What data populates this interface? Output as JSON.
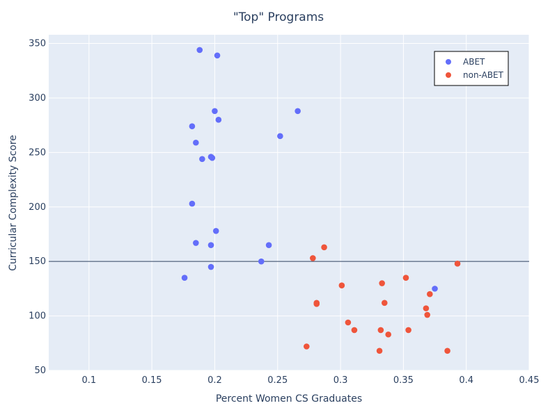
{
  "chart_data": {
    "type": "scatter",
    "title": "\"Top\" Programs",
    "xlabel": "Percent Women CS Graduates",
    "ylabel": "Curricular Complexity Score",
    "xlim": [
      0.068,
      0.45
    ],
    "ylim": [
      50,
      358
    ],
    "xticks": [
      0.1,
      0.15,
      0.2,
      0.25,
      0.3,
      0.35,
      0.4,
      0.45
    ],
    "xtick_labels": [
      "0.1",
      "0.15",
      "0.2",
      "0.25",
      "0.3",
      "0.35",
      "0.4",
      "0.45"
    ],
    "yticks": [
      50,
      100,
      150,
      200,
      250,
      300,
      350
    ],
    "ytick_labels": [
      "50",
      "100",
      "150",
      "200",
      "250",
      "300",
      "350"
    ],
    "hline": 150,
    "grid": true,
    "legend_position": "top-right",
    "series": [
      {
        "name": "ABET",
        "color": "#636efa",
        "points": [
          [
            0.188,
            344
          ],
          [
            0.202,
            339
          ],
          [
            0.2,
            288
          ],
          [
            0.266,
            288
          ],
          [
            0.203,
            280
          ],
          [
            0.182,
            274
          ],
          [
            0.252,
            265
          ],
          [
            0.185,
            259
          ],
          [
            0.197,
            246
          ],
          [
            0.19,
            244
          ],
          [
            0.198,
            245
          ],
          [
            0.182,
            203
          ],
          [
            0.201,
            178
          ],
          [
            0.185,
            167
          ],
          [
            0.197,
            165
          ],
          [
            0.243,
            165
          ],
          [
            0.237,
            150
          ],
          [
            0.197,
            145
          ],
          [
            0.176,
            135
          ],
          [
            0.375,
            125
          ]
        ]
      },
      {
        "name": "non-ABET",
        "color": "#ef553b",
        "points": [
          [
            0.287,
            163
          ],
          [
            0.278,
            153
          ],
          [
            0.393,
            148
          ],
          [
            0.352,
            135
          ],
          [
            0.333,
            130
          ],
          [
            0.301,
            128
          ],
          [
            0.371,
            120
          ],
          [
            0.281,
            112
          ],
          [
            0.335,
            112
          ],
          [
            0.281,
            111
          ],
          [
            0.368,
            107
          ],
          [
            0.369,
            101
          ],
          [
            0.306,
            94
          ],
          [
            0.311,
            87
          ],
          [
            0.332,
            87
          ],
          [
            0.354,
            87
          ],
          [
            0.338,
            83
          ],
          [
            0.273,
            72
          ],
          [
            0.331,
            68
          ],
          [
            0.385,
            68
          ]
        ]
      }
    ]
  }
}
